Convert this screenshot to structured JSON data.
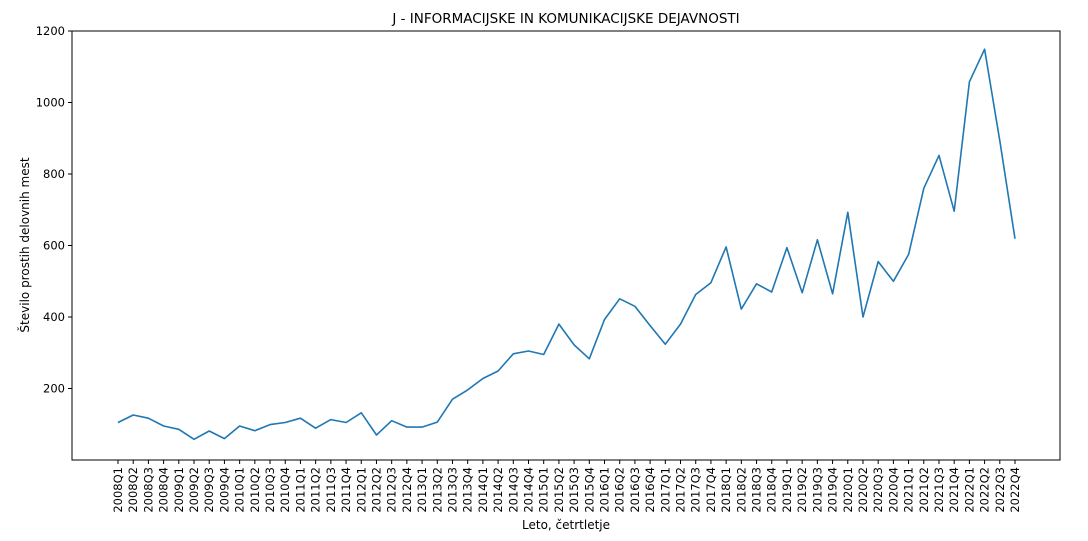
{
  "chart_data": {
    "type": "line",
    "title": "J - INFORMACIJSKE IN KOMUNIKACIJSKE DEJAVNOSTI",
    "xlabel": "Leto, četrtletje",
    "ylabel": "Število prostih delovnih mest",
    "ylim": [
      0,
      1200
    ],
    "yticks": [
      200,
      400,
      600,
      800,
      1000,
      1200
    ],
    "grid": false,
    "line_color": "#1f77b4",
    "categories": [
      "2008Q1",
      "2008Q2",
      "2008Q3",
      "2008Q4",
      "2009Q1",
      "2009Q2",
      "2009Q3",
      "2009Q4",
      "2010Q1",
      "2010Q2",
      "2010Q3",
      "2010Q4",
      "2011Q1",
      "2011Q2",
      "2011Q3",
      "2011Q4",
      "2012Q1",
      "2012Q2",
      "2012Q3",
      "2012Q4",
      "2013Q1",
      "2013Q2",
      "2013Q3",
      "2013Q4",
      "2014Q1",
      "2014Q2",
      "2014Q3",
      "2014Q4",
      "2015Q1",
      "2015Q2",
      "2015Q3",
      "2015Q4",
      "2016Q1",
      "2016Q2",
      "2016Q3",
      "2016Q4",
      "2017Q1",
      "2017Q2",
      "2017Q3",
      "2017Q4",
      "2018Q1",
      "2018Q2",
      "2018Q3",
      "2018Q4",
      "2019Q1",
      "2019Q2",
      "2019Q3",
      "2019Q4",
      "2020Q1",
      "2020Q2",
      "2020Q3",
      "2020Q4",
      "2021Q1",
      "2021Q2",
      "2021Q3",
      "2021Q4",
      "2022Q1",
      "2022Q2",
      "2022Q3",
      "2022Q4"
    ],
    "values": [
      105,
      126,
      117,
      95,
      86,
      58,
      81,
      60,
      95,
      82,
      99,
      105,
      117,
      89,
      113,
      105,
      132,
      70,
      110,
      92,
      92,
      106,
      170,
      196,
      228,
      249,
      297,
      305,
      295,
      380,
      322,
      283,
      393,
      451,
      430,
      376,
      324,
      380,
      463,
      496,
      596,
      422,
      493,
      470,
      594,
      468,
      616,
      465,
      693,
      400,
      555,
      500,
      575,
      760,
      852,
      696,
      1058,
      1149,
      893,
      619
    ]
  }
}
